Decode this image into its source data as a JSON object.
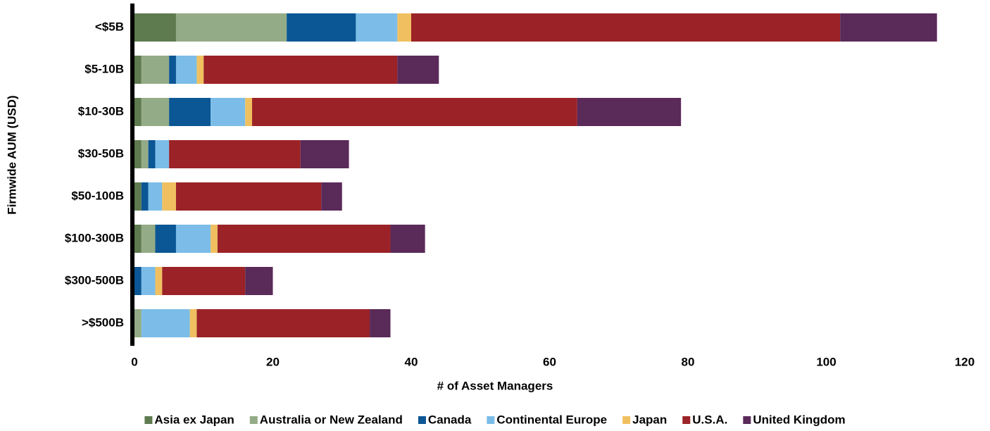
{
  "chart_data": {
    "type": "stacked_barh",
    "xlabel": "# of Asset Managers",
    "ylabel": "Firmwide AUM (USD)",
    "categories": [
      "<$5B",
      "$5-10B",
      "$10-30B",
      "$30-50B",
      "$50-100B",
      "$100-300B",
      "$300-500B",
      ">$500B"
    ],
    "series": [
      {
        "name": "Asia ex Japan",
        "color": "#5e7a4f",
        "values": [
          6,
          1,
          1,
          1,
          1,
          1,
          0,
          0
        ]
      },
      {
        "name": "Australia or New Zealand",
        "color": "#93ab86",
        "values": [
          16,
          4,
          4,
          1,
          0,
          2,
          0,
          1
        ]
      },
      {
        "name": "Canada",
        "color": "#0b5694",
        "values": [
          10,
          1,
          6,
          1,
          1,
          3,
          1,
          0
        ]
      },
      {
        "name": "Continental Europe",
        "color": "#7bbde8",
        "values": [
          6,
          3,
          5,
          2,
          2,
          5,
          2,
          7
        ]
      },
      {
        "name": "Japan",
        "color": "#f0c060",
        "values": [
          2,
          1,
          1,
          0,
          2,
          1,
          1,
          1
        ]
      },
      {
        "name": "U.S.A.",
        "color": "#9b2226",
        "values": [
          62,
          28,
          47,
          19,
          21,
          25,
          12,
          25
        ]
      },
      {
        "name": "United Kingdom",
        "color": "#5a2a59",
        "values": [
          14,
          6,
          15,
          7,
          3,
          5,
          4,
          3
        ]
      }
    ],
    "xlim": [
      0,
      120
    ],
    "xticks": [
      0,
      20,
      40,
      60,
      80,
      100,
      120
    ],
    "grid": false,
    "legend": "bottom"
  }
}
